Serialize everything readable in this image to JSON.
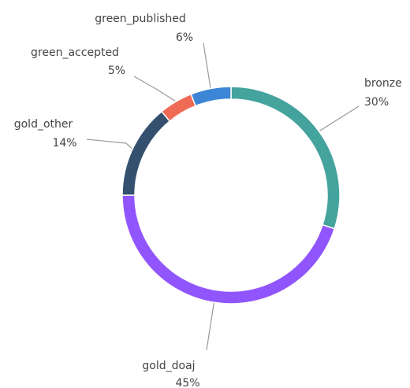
{
  "chart_data": {
    "type": "donut",
    "categories": [
      "bronze",
      "gold_doaj",
      "gold_other",
      "green_accepted",
      "green_published"
    ],
    "values": [
      30,
      45,
      14,
      5,
      6
    ],
    "value_labels": [
      "30%",
      "45%",
      "14%",
      "5%",
      "6%"
    ],
    "colors": [
      "#45a39e",
      "#9155fd",
      "#34506e",
      "#ef6b55",
      "#3d85d6"
    ]
  }
}
